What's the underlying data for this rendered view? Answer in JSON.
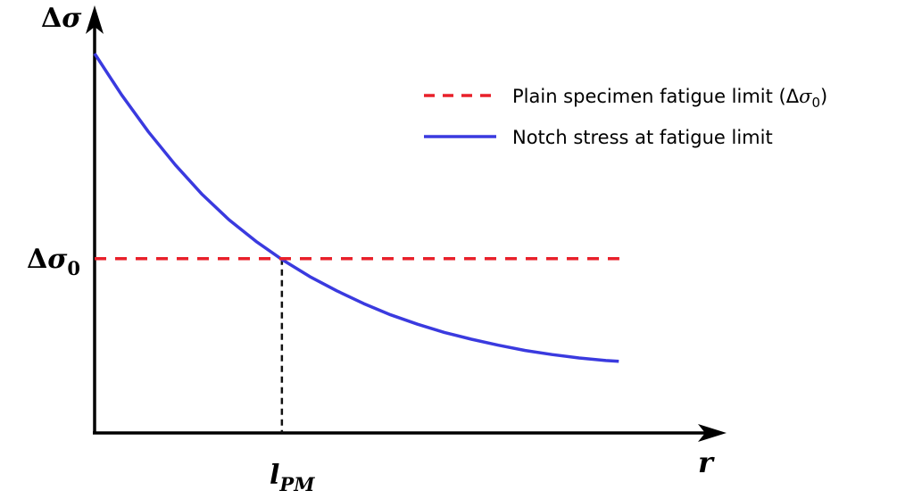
{
  "chart_data": {
    "type": "line",
    "y_axis_symbol": "Δ",
    "y_axis_var": "σ",
    "x_axis_label": "r",
    "threshold_label_symbol": "Δ",
    "threshold_label_var": "σ",
    "threshold_label_sub": "0",
    "crossing_label_main": "l",
    "crossing_label_sub": "PM",
    "legend": {
      "dashed_prefix": "Plain specimen fatigue limit (",
      "dashed_math_delta": "Δ",
      "dashed_math_sigma": "σ",
      "dashed_math_sub": "0",
      "dashed_suffix": ")",
      "solid": "Notch stress at fatigue limit"
    },
    "colors": {
      "curve": "#3a3adf",
      "threshold": "#e8202a",
      "drop_line": "#111111",
      "axes": "#000000"
    },
    "domain": {
      "x": [
        0,
        10
      ],
      "y": [
        0,
        10
      ]
    },
    "series": [
      {
        "style": "solid",
        "x": [
          0,
          0.5,
          1,
          1.5,
          2,
          2.5,
          3,
          3.5,
          4,
          4.5,
          5,
          5.5,
          6,
          6.5,
          7,
          7.5,
          8,
          8.5,
          9,
          9.5,
          9.74
        ],
        "y": [
          10.12,
          9.02,
          8.03,
          7.15,
          6.36,
          5.68,
          5.11,
          4.61,
          4.17,
          3.79,
          3.45,
          3.15,
          2.9,
          2.68,
          2.5,
          2.34,
          2.2,
          2.09,
          2.0,
          1.93,
          1.91
        ]
      },
      {
        "style": "dashed",
        "x": [
          0,
          9.75
        ],
        "y": [
          4.65,
          4.65
        ]
      }
    ],
    "crossing": {
      "x": 3.48,
      "y": 4.65
    }
  }
}
